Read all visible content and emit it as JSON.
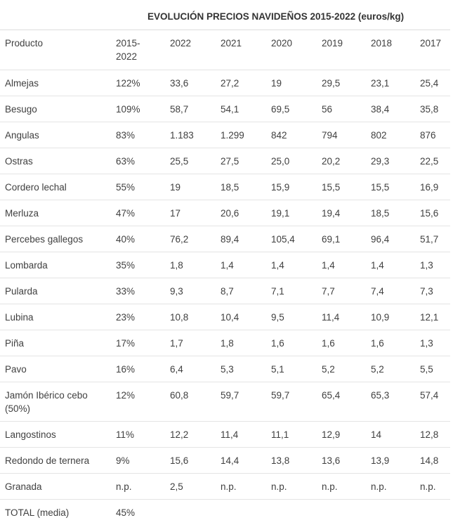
{
  "title": "EVOLUCIÓN PRECIOS NAVIDEÑOS 2015-2022 (euros/kg)",
  "headers": {
    "product": "Producto",
    "pct_line1": "2015-",
    "pct_line2": "2022",
    "years": [
      "2022",
      "2021",
      "2020",
      "2019",
      "2018",
      "2017"
    ]
  },
  "rows": [
    {
      "product": "Almejas",
      "pct": "122%",
      "values": [
        "33,6",
        "27,2",
        "19",
        "29,5",
        "23,1",
        "25,4"
      ]
    },
    {
      "product": "Besugo",
      "pct": "109%",
      "values": [
        "58,7",
        "54,1",
        "69,5",
        "56",
        "38,4",
        "35,8"
      ]
    },
    {
      "product": "Angulas",
      "pct": "83%",
      "values": [
        "1.183",
        "1.299",
        "842",
        "794",
        "802",
        "876"
      ]
    },
    {
      "product": "Ostras",
      "pct": "63%",
      "values": [
        "25,5",
        "27,5",
        "25,0",
        "20,2",
        "29,3",
        "22,5"
      ]
    },
    {
      "product": "Cordero lechal",
      "pct": "55%",
      "values": [
        "19",
        "18,5",
        "15,9",
        "15,5",
        "15,5",
        "16,9"
      ]
    },
    {
      "product": "Merluza",
      "pct": "47%",
      "values": [
        "17",
        "20,6",
        "19,1",
        "19,4",
        "18,5",
        "15,6"
      ]
    },
    {
      "product": "Percebes gallegos",
      "pct": "40%",
      "values": [
        "76,2",
        "89,4",
        "105,4",
        "69,1",
        "96,4",
        "51,7"
      ]
    },
    {
      "product": "Lombarda",
      "pct": "35%",
      "values": [
        "1,8",
        "1,4",
        "1,4",
        "1,4",
        "1,4",
        "1,3"
      ]
    },
    {
      "product": "Pularda",
      "pct": "33%",
      "values": [
        "9,3",
        "8,7",
        "7,1",
        "7,7",
        "7,4",
        "7,3"
      ]
    },
    {
      "product": "Lubina",
      "pct": "23%",
      "values": [
        "10,8",
        "10,4",
        "9,5",
        "11,4",
        "10,9",
        "12,1"
      ]
    },
    {
      "product": "Piña",
      "pct": "17%",
      "values": [
        "1,7",
        "1,8",
        "1,6",
        "1,6",
        "1,6",
        "1,3"
      ]
    },
    {
      "product": "Pavo",
      "pct": "16%",
      "values": [
        "6,4",
        "5,3",
        "5,1",
        "5,2",
        "5,2",
        "5,5"
      ]
    },
    {
      "product": "Jamón Ibérico cebo (50%)",
      "pct": "12%",
      "values": [
        "60,8",
        "59,7",
        "59,7",
        "65,4",
        "65,3",
        "57,4"
      ]
    },
    {
      "product": "Langostinos",
      "pct": "11%",
      "values": [
        "12,2",
        "11,4",
        "11,1",
        "12,9",
        "14",
        "12,8"
      ]
    },
    {
      "product": "Redondo de ternera",
      "pct": "9%",
      "values": [
        "15,6",
        "14,4",
        "13,8",
        "13,6",
        "13,9",
        "14,8"
      ]
    },
    {
      "product": "Granada",
      "pct": "n.p.",
      "values": [
        "2,5",
        "n.p.",
        "n.p.",
        "n.p.",
        "n.p.",
        "n.p."
      ]
    },
    {
      "product": "TOTAL (media)",
      "pct": "45%",
      "values": [
        "",
        "",
        "",
        "",
        "",
        ""
      ]
    }
  ]
}
